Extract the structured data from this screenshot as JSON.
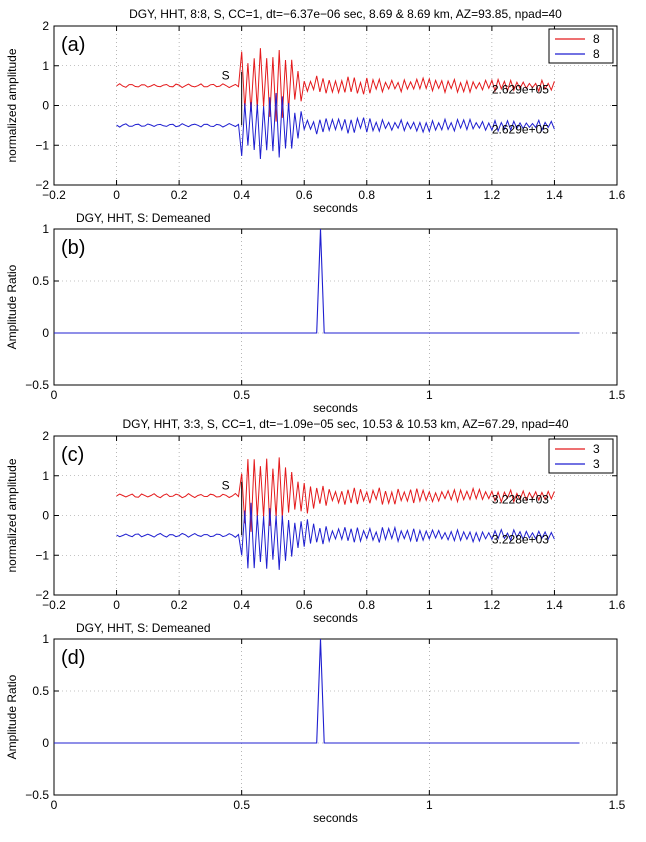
{
  "chart_data": [
    {
      "panel_label": "(a)",
      "type": "line",
      "title": "DGY, HHT, 8:8, S, CC=1,  dt=−6.37e−06 sec,  8.69 & 8.69 km, AZ=93.85, npad=40",
      "xlabel": "seconds",
      "ylabel": "normalized amplitude",
      "xlim": [
        -0.2,
        1.6
      ],
      "ylim": [
        -2,
        2
      ],
      "xticks": [
        -0.2,
        0,
        0.2,
        0.4,
        0.6,
        0.8,
        1,
        1.2,
        1.4,
        1.6
      ],
      "xtick_labels": [
        "−0.2",
        "0",
        "0.2",
        "0.4",
        "0.6",
        "0.8",
        "1",
        "1.2",
        "1.4",
        "1.6"
      ],
      "yticks": [
        -2,
        -1,
        0,
        1,
        2
      ],
      "ytick_labels": [
        "−2",
        "−1",
        "0",
        "1",
        "2"
      ],
      "grid": true,
      "legend": "top-right",
      "colors": [
        "#e41a1c",
        "#1f1fd0"
      ],
      "series": [
        {
          "name": "8",
          "offset": 0.5,
          "amp_label": "2.629e+05"
        },
        {
          "name": "8",
          "offset": -0.5,
          "amp_label": "2.629e+05"
        }
      ],
      "x_start": 0,
      "x_end": 1.4,
      "onset": 0.4,
      "pick_label": "S",
      "burst_end": 0.6
    },
    {
      "panel_label": "(b)",
      "type": "line",
      "title": "DGY, HHT, S: Demeaned",
      "xlabel": "seconds",
      "ylabel": "Amplitude Ratio",
      "xlim": [
        0,
        1.5
      ],
      "ylim": [
        -0.5,
        1
      ],
      "xticks": [
        0,
        0.5,
        1,
        1.5
      ],
      "xtick_labels": [
        "0",
        "0.5",
        "1",
        "1.5"
      ],
      "yticks": [
        -0.5,
        0,
        0.5,
        1
      ],
      "ytick_labels": [
        "−0.5",
        "0",
        "0.5",
        "1"
      ],
      "grid": true,
      "colors": [
        "#1f1fd0"
      ],
      "x": [
        0,
        0.7,
        0.71,
        0.72,
        1.4
      ],
      "y": [
        0,
        0,
        1,
        0,
        0
      ]
    },
    {
      "panel_label": "(c)",
      "type": "line",
      "title": "DGY, HHT, 3:3, S, CC=1,  dt=−1.09e−05 sec,  10.53 & 10.53 km, AZ=67.29, npad=40",
      "xlabel": "seconds",
      "ylabel": "normalized amplitude",
      "xlim": [
        -0.2,
        1.6
      ],
      "ylim": [
        -2,
        2
      ],
      "xticks": [
        -0.2,
        0,
        0.2,
        0.4,
        0.6,
        0.8,
        1,
        1.2,
        1.4,
        1.6
      ],
      "xtick_labels": [
        "−0.2",
        "0",
        "0.2",
        "0.4",
        "0.6",
        "0.8",
        "1",
        "1.2",
        "1.4",
        "1.6"
      ],
      "yticks": [
        -2,
        -1,
        0,
        1,
        2
      ],
      "ytick_labels": [
        "−2",
        "−1",
        "0",
        "1",
        "2"
      ],
      "grid": true,
      "legend": "top-right",
      "colors": [
        "#e41a1c",
        "#1f1fd0"
      ],
      "series": [
        {
          "name": "3",
          "offset": 0.5,
          "amp_label": "3.228e+03"
        },
        {
          "name": "3",
          "offset": -0.5,
          "amp_label": "3.228e+03"
        }
      ],
      "x_start": 0,
      "x_end": 1.4,
      "onset": 0.4,
      "pick_label": "S",
      "burst_end": 0.7
    },
    {
      "panel_label": "(d)",
      "type": "line",
      "title": "DGY, HHT, S: Demeaned",
      "xlabel": "seconds",
      "ylabel": "Amplitude Ratio",
      "xlim": [
        0,
        1.5
      ],
      "ylim": [
        -0.5,
        1
      ],
      "xticks": [
        0,
        0.5,
        1,
        1.5
      ],
      "xtick_labels": [
        "0",
        "0.5",
        "1",
        "1.5"
      ],
      "yticks": [
        -0.5,
        0,
        0.5,
        1
      ],
      "ytick_labels": [
        "−0.5",
        "0",
        "0.5",
        "1"
      ],
      "grid": true,
      "colors": [
        "#1f1fd0"
      ],
      "x": [
        0,
        0.7,
        0.71,
        0.72,
        1.4
      ],
      "y": [
        0,
        0,
        1,
        0,
        0
      ]
    }
  ]
}
